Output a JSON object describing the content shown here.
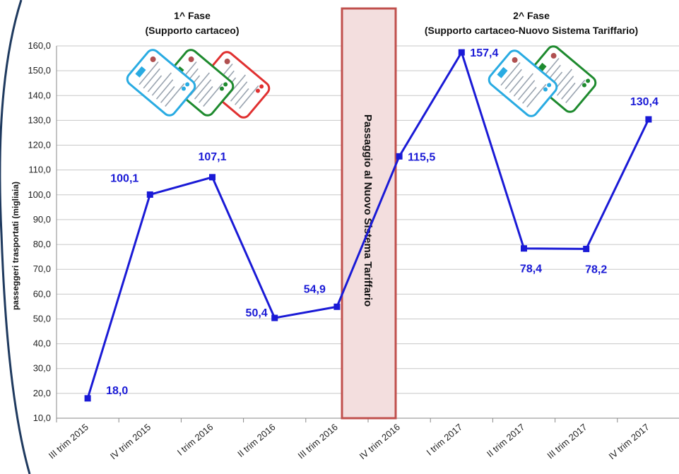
{
  "chart_data": {
    "type": "line",
    "ylabel": "passeggeri trasportati (migliaia)",
    "xlabel": "",
    "ylim": [
      10,
      160
    ],
    "ytick_step": 10,
    "categories": [
      "III trim 2015",
      "IV trim 2015",
      "I trim 2016",
      "II trim 2016",
      "III trim 2016",
      "IV trim 2016",
      "I trim 2017",
      "II trim 2017",
      "III trim 2017",
      "IV trim 2017"
    ],
    "series": [
      {
        "color": "#1a1ad6",
        "values": [
          18.0,
          100.1,
          107.1,
          50.4,
          54.9,
          115.5,
          157.4,
          78.4,
          78.2,
          130.4
        ],
        "labels": [
          "18,0",
          "100,1",
          "107,1",
          "50,4",
          "54,9",
          "115,5",
          "157,4",
          "78,4",
          "78,2",
          "130,4"
        ]
      }
    ],
    "phases": [
      {
        "title": "1^ Fase",
        "subtitle": "(Supporto cartaceo)"
      },
      {
        "title": "2^ Fase",
        "subtitle": "(Supporto cartaceo-Nuovo Sistema Tariffario)"
      }
    ],
    "transition_label": "Passaggio al Nuovo Sistema Tariffario",
    "transition_color": "#f3dede",
    "transition_border": "#c0504d",
    "grid": true,
    "card_colors": [
      "#29abe2",
      "#1e8a2e",
      "#e03030"
    ]
  }
}
